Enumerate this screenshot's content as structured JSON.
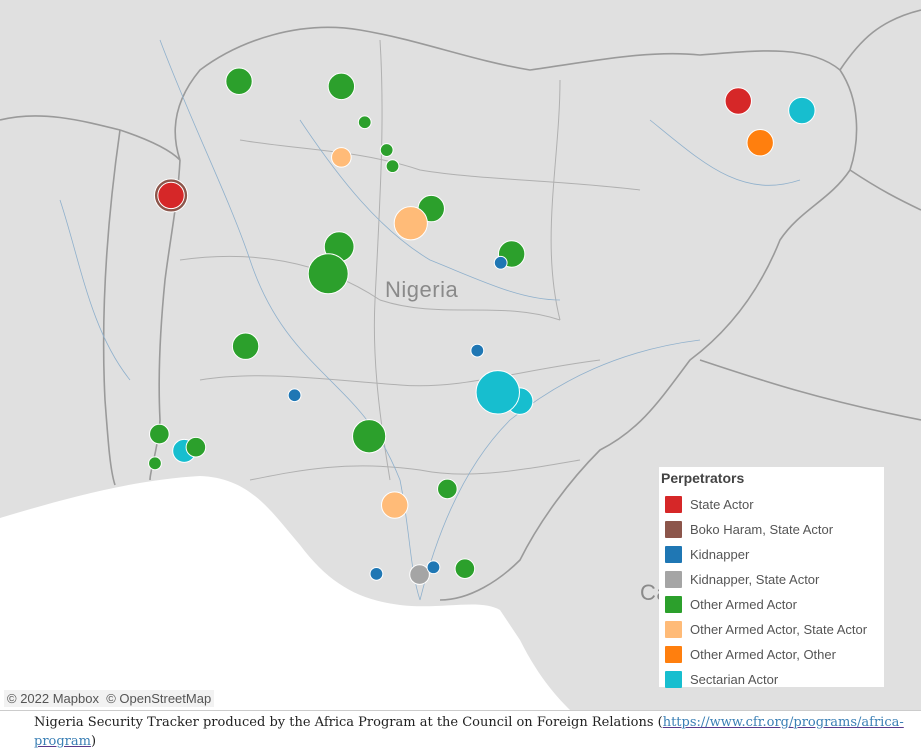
{
  "map": {
    "country_labels": [
      "Nigeria",
      "Ca"
    ],
    "attribution": [
      "© 2022 Mapbox",
      "© OpenStreetMap"
    ],
    "extent": {
      "lon": [
        2.4,
        15.0
      ],
      "lat": [
        4.3,
        14.0
      ]
    },
    "colors": {
      "land": "#e0e0e0",
      "water": "#ffffff",
      "boundary": "#9a9a9a",
      "river": "#7fa8c9"
    }
  },
  "legend": {
    "title": "Perpetrators",
    "items": [
      {
        "label": "State Actor",
        "color": "#d62728"
      },
      {
        "label": "Boko Haram, State Actor",
        "color": "#8c564b"
      },
      {
        "label": "Kidnapper",
        "color": "#1f77b4"
      },
      {
        "label": "Kidnapper, State Actor",
        "color": "#a5a5a5"
      },
      {
        "label": "Other Armed Actor",
        "color": "#2ca02c"
      },
      {
        "label": "Other Armed Actor, State Actor",
        "color": "#ffbb78"
      },
      {
        "label": "Other Armed Actor, Other",
        "color": "#ff7f0e"
      },
      {
        "label": "Sectarian Actor",
        "color": "#17becf"
      }
    ]
  },
  "markers": [
    {
      "lon": 5.67,
      "lat": 12.89,
      "size": 3,
      "cat": 4
    },
    {
      "lon": 7.07,
      "lat": 12.82,
      "size": 3,
      "cat": 4
    },
    {
      "lon": 7.39,
      "lat": 12.33,
      "size": 1,
      "cat": 4
    },
    {
      "lon": 7.69,
      "lat": 11.95,
      "size": 1,
      "cat": 4
    },
    {
      "lon": 7.77,
      "lat": 11.73,
      "size": 1,
      "cat": 4
    },
    {
      "lon": 7.07,
      "lat": 11.85,
      "size": 2,
      "cat": 5
    },
    {
      "lon": 12.5,
      "lat": 12.62,
      "size": 3,
      "cat": 0
    },
    {
      "lon": 13.37,
      "lat": 12.49,
      "size": 3,
      "cat": 7
    },
    {
      "lon": 12.8,
      "lat": 12.05,
      "size": 3,
      "cat": 6
    },
    {
      "lon": 4.74,
      "lat": 11.33,
      "size": 4,
      "cat": 1
    },
    {
      "lon": 4.74,
      "lat": 11.33,
      "size": 3,
      "cat": 0
    },
    {
      "lon": 8.3,
      "lat": 11.15,
      "size": 3,
      "cat": 4
    },
    {
      "lon": 8.02,
      "lat": 10.95,
      "size": 4,
      "cat": 5
    },
    {
      "lon": 7.04,
      "lat": 10.63,
      "size": 3.5,
      "cat": 4
    },
    {
      "lon": 6.89,
      "lat": 10.26,
      "size": 5,
      "cat": 4
    },
    {
      "lon": 9.4,
      "lat": 10.53,
      "size": 3,
      "cat": 4
    },
    {
      "lon": 9.25,
      "lat": 10.41,
      "size": 1,
      "cat": 2
    },
    {
      "lon": 5.76,
      "lat": 9.27,
      "size": 3,
      "cat": 4
    },
    {
      "lon": 8.93,
      "lat": 9.21,
      "size": 1,
      "cat": 2
    },
    {
      "lon": 9.51,
      "lat": 8.52,
      "size": 3,
      "cat": 7
    },
    {
      "lon": 9.21,
      "lat": 8.64,
      "size": 5.5,
      "cat": 7
    },
    {
      "lon": 6.43,
      "lat": 8.6,
      "size": 1,
      "cat": 2
    },
    {
      "lon": 7.45,
      "lat": 8.04,
      "size": 4,
      "cat": 4
    },
    {
      "lon": 4.58,
      "lat": 8.07,
      "size": 2,
      "cat": 4
    },
    {
      "lon": 4.92,
      "lat": 7.84,
      "size": 2.5,
      "cat": 7
    },
    {
      "lon": 5.08,
      "lat": 7.89,
      "size": 2,
      "cat": 4
    },
    {
      "lon": 4.52,
      "lat": 7.67,
      "size": 1,
      "cat": 4
    },
    {
      "lon": 8.52,
      "lat": 7.32,
      "size": 2,
      "cat": 4
    },
    {
      "lon": 7.8,
      "lat": 7.1,
      "size": 3,
      "cat": 5
    },
    {
      "lon": 8.14,
      "lat": 6.15,
      "size": 2,
      "cat": 3
    },
    {
      "lon": 8.33,
      "lat": 6.25,
      "size": 1,
      "cat": 2
    },
    {
      "lon": 7.55,
      "lat": 6.16,
      "size": 1,
      "cat": 2
    },
    {
      "lon": 8.76,
      "lat": 6.23,
      "size": 2,
      "cat": 4
    }
  ],
  "caption": {
    "text": "Nigeria Security Tracker produced by the Africa Program at the Council on Foreign Relations (",
    "link": "https://www.cfr.org/programs/africa-program",
    "close": ")"
  }
}
